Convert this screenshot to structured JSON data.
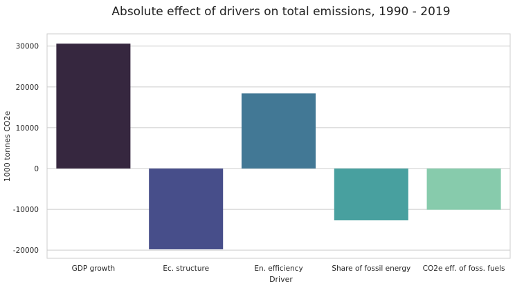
{
  "chart_data": {
    "type": "bar",
    "title": "Absolute effect of drivers on total emissions, 1990 - 2019",
    "xlabel": "Driver",
    "ylabel": "1000 tonnes CO2e",
    "categories": [
      "GDP growth",
      "Ec. structure",
      "En. efficiency",
      "Share of fossil energy",
      "CO2e eff. of foss. fuels"
    ],
    "values": [
      30600,
      -19800,
      18400,
      -12700,
      -10100
    ],
    "colors": [
      "#36273f",
      "#474e8a",
      "#427895",
      "#48a09f",
      "#87cbac"
    ],
    "ylim": [
      -22000,
      33000
    ],
    "yticks": [
      -20000,
      -10000,
      0,
      10000,
      20000,
      30000
    ],
    "grid": true,
    "legend": "none"
  }
}
